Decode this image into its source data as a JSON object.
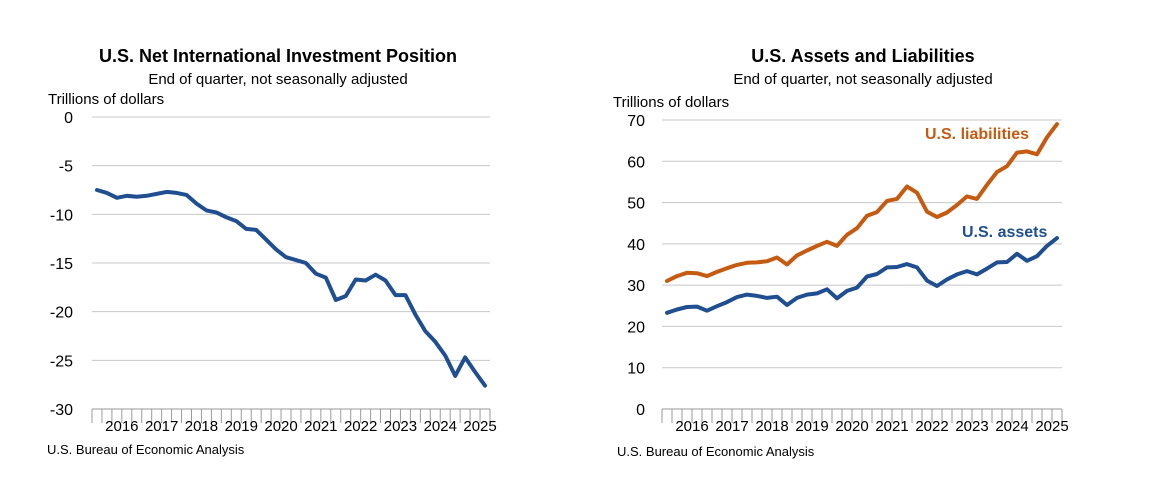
{
  "chart_data": [
    {
      "type": "line",
      "title": "U.S. Net International Investment Position",
      "subtitle": "End of quarter, not seasonally adjusted",
      "ylabel": "Trillions of dollars",
      "xlabel": "",
      "ylim": [
        -30,
        0
      ],
      "yticks": [
        "0",
        "-5",
        "-10",
        "-15",
        "-20",
        "-25",
        "-30"
      ],
      "year_labels": [
        "2016",
        "2017",
        "2018",
        "2019",
        "2020",
        "2021",
        "2022",
        "2023",
        "2024",
        "2025"
      ],
      "grid": true,
      "source": "U.S. Bureau of Economic Analysis",
      "x": [
        "2015Q4",
        "2016Q1",
        "2016Q2",
        "2016Q3",
        "2016Q4",
        "2017Q1",
        "2017Q2",
        "2017Q3",
        "2017Q4",
        "2018Q1",
        "2018Q2",
        "2018Q3",
        "2018Q4",
        "2019Q1",
        "2019Q2",
        "2019Q3",
        "2019Q4",
        "2020Q1",
        "2020Q2",
        "2020Q3",
        "2020Q4",
        "2021Q1",
        "2021Q2",
        "2021Q3",
        "2021Q4",
        "2022Q1",
        "2022Q2",
        "2022Q3",
        "2022Q4",
        "2023Q1",
        "2023Q2",
        "2023Q3",
        "2023Q4",
        "2024Q1",
        "2024Q2",
        "2024Q3",
        "2024Q4",
        "2025Q1",
        "2025Q2",
        "2025Q3"
      ],
      "series": [
        {
          "color": "#1f4e91",
          "values": [
            -7.5,
            -7.8,
            -8.3,
            -8.1,
            -8.2,
            -8.1,
            -7.9,
            -7.7,
            -7.8,
            -8.0,
            -8.9,
            -9.6,
            -9.8,
            -10.3,
            -10.7,
            -11.5,
            -11.6,
            -12.6,
            -13.6,
            -14.4,
            -14.7,
            -15.0,
            -16.1,
            -16.5,
            -18.8,
            -18.4,
            -16.7,
            -16.8,
            -16.2,
            -16.8,
            -18.3,
            -18.3,
            -20.3,
            -22.0,
            -23.1,
            -24.5,
            -26.6,
            -24.7,
            -26.2,
            -27.6
          ]
        }
      ]
    },
    {
      "type": "line",
      "title": "U.S. Assets and Liabilities",
      "subtitle": "End of quarter, not seasonally adjusted",
      "ylabel": "Trillions of dollars",
      "xlabel": "",
      "ylim": [
        0,
        70
      ],
      "yticks": [
        "70",
        "60",
        "50",
        "40",
        "30",
        "20",
        "10",
        "0"
      ],
      "year_labels": [
        "2016",
        "2017",
        "2018",
        "2019",
        "2020",
        "2021",
        "2022",
        "2023",
        "2024",
        "2025"
      ],
      "grid": true,
      "source": "U.S. Bureau of Economic Analysis",
      "x": [
        "2015Q4",
        "2016Q1",
        "2016Q2",
        "2016Q3",
        "2016Q4",
        "2017Q1",
        "2017Q2",
        "2017Q3",
        "2017Q4",
        "2018Q1",
        "2018Q2",
        "2018Q3",
        "2018Q4",
        "2019Q1",
        "2019Q2",
        "2019Q3",
        "2019Q4",
        "2020Q1",
        "2020Q2",
        "2020Q3",
        "2020Q4",
        "2021Q1",
        "2021Q2",
        "2021Q3",
        "2021Q4",
        "2022Q1",
        "2022Q2",
        "2022Q3",
        "2022Q4",
        "2023Q1",
        "2023Q2",
        "2023Q3",
        "2023Q4",
        "2024Q1",
        "2024Q2",
        "2024Q3",
        "2024Q4",
        "2025Q1",
        "2025Q2",
        "2025Q3"
      ],
      "series": [
        {
          "name": "U.S. liabilities",
          "color": "#c55a11",
          "values": [
            31.0,
            32.2,
            33.0,
            32.9,
            32.2,
            33.2,
            34.1,
            34.9,
            35.4,
            35.5,
            35.8,
            36.7,
            35.0,
            37.2,
            38.4,
            39.5,
            40.5,
            39.5,
            42.2,
            43.8,
            46.8,
            47.7,
            50.4,
            50.9,
            53.9,
            52.4,
            47.8,
            46.5,
            47.6,
            49.4,
            51.5,
            50.9,
            54.3,
            57.4,
            58.8,
            62.1,
            62.4,
            61.7,
            65.8,
            69.0
          ]
        },
        {
          "name": "U.S. assets",
          "color": "#1f4e91",
          "values": [
            23.3,
            24.1,
            24.7,
            24.8,
            23.8,
            24.9,
            25.9,
            27.1,
            27.7,
            27.4,
            26.9,
            27.2,
            25.2,
            26.9,
            27.7,
            28.0,
            29.0,
            26.8,
            28.6,
            29.4,
            32.1,
            32.7,
            34.3,
            34.4,
            35.1,
            34.3,
            31.1,
            29.8,
            31.4,
            32.6,
            33.4,
            32.6,
            34.0,
            35.5,
            35.6,
            37.6,
            35.9,
            37.0,
            39.5,
            41.4
          ]
        }
      ]
    }
  ]
}
